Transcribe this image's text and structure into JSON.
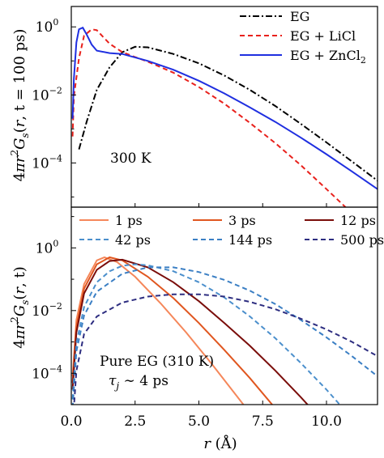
{
  "chart_data": [
    {
      "type": "line",
      "panel": "top",
      "ylabel": "4πr²G_s(r⃗, t = 100 ps)",
      "ylabel_parts": [
        "4",
        "π",
        "r",
        "2",
        "G",
        "s",
        "(",
        "r",
        ", t = 100 ps)"
      ],
      "xlim": [
        0,
        12
      ],
      "ylim_log10": [
        -5.3,
        0.6
      ],
      "ytick_labels": [
        {
          "value": 0,
          "mant": "10",
          "exp": "0"
        },
        {
          "value": -2,
          "mant": "10",
          "exp": "−2"
        },
        {
          "value": -4,
          "mant": "10",
          "exp": "−4"
        }
      ],
      "annotation": "300 K",
      "legend_position": "top-right",
      "series": [
        {
          "name": "EG",
          "name_parts": [
            "EG",
            "",
            ""
          ],
          "color": "#000000",
          "dash": "8,3,2,3",
          "x": [
            0.3,
            0.6,
            1.0,
            1.5,
            2.0,
            2.5,
            3.0,
            4.0,
            5.0,
            6.0,
            7.0,
            8.0,
            9.0,
            10.0,
            11.0,
            12.0
          ],
          "y": [
            0.00025,
            0.0016,
            0.014,
            0.065,
            0.18,
            0.26,
            0.25,
            0.16,
            0.085,
            0.037,
            0.014,
            0.0047,
            0.0014,
            0.0004,
            0.00011,
            3e-05
          ]
        },
        {
          "name": "EG + LiCl",
          "name_parts": [
            "EG + LiCl",
            "",
            ""
          ],
          "color": "#e8211c",
          "dash": "6,4",
          "x": [
            0.05,
            0.1,
            0.3,
            0.5,
            0.8,
            1.0,
            1.2,
            1.5,
            2.0,
            2.5,
            3.0,
            4.0,
            5.0,
            6.0,
            7.0,
            8.0,
            9.0,
            10.0,
            11.0,
            12.0
          ],
          "y": [
            0.0006,
            0.009,
            0.12,
            0.55,
            0.85,
            0.8,
            0.55,
            0.32,
            0.18,
            0.13,
            0.095,
            0.045,
            0.017,
            0.0055,
            0.0015,
            0.00038,
            8.5e-05,
            1.7e-05,
            3.3e-06,
            6e-07
          ]
        },
        {
          "name": "EG + ZnCl₂",
          "name_parts": [
            "EG + ZnCl",
            "2",
            ""
          ],
          "color": "#1f2fe0",
          "dash": "",
          "x": [
            0.05,
            0.1,
            0.2,
            0.3,
            0.45,
            0.6,
            0.8,
            1.0,
            1.5,
            2.0,
            3.0,
            4.0,
            5.0,
            6.0,
            7.0,
            8.0,
            9.0,
            10.0,
            11.0,
            12.0
          ],
          "y": [
            0.002,
            0.03,
            0.35,
            0.85,
            0.95,
            0.6,
            0.3,
            0.2,
            0.17,
            0.16,
            0.1,
            0.055,
            0.026,
            0.011,
            0.0043,
            0.0016,
            0.00055,
            0.00018,
            5.6e-05,
            1.7e-05
          ]
        }
      ]
    },
    {
      "type": "line",
      "panel": "bottom",
      "ylabel": "4πr²G_s(r⃗, t)",
      "ylabel_parts": [
        "4",
        "π",
        "r",
        "2",
        "G",
        "s",
        "(",
        "r",
        ", t)"
      ],
      "xlabel": "r (Å)",
      "xlabel_parts": [
        "r",
        " (Å)"
      ],
      "xlim": [
        0,
        12
      ],
      "ylim_log10": [
        -5.0,
        1.3
      ],
      "xtick_labels": [
        "0.0",
        "2.5",
        "5.0",
        "7.5",
        "10.0"
      ],
      "xtick_values": [
        0,
        2.5,
        5,
        7.5,
        10
      ],
      "ytick_labels": [
        {
          "value": 0,
          "mant": "10",
          "exp": "0"
        },
        {
          "value": -2,
          "mant": "10",
          "exp": "−2"
        },
        {
          "value": -4,
          "mant": "10",
          "exp": "−4"
        }
      ],
      "annotation": "Pure EG (310 K)",
      "annotation2_parts": [
        "τ",
        "j",
        " ∼ 4 ps"
      ],
      "annotation2": "τj ∼ 4 ps",
      "legend_position": "top (3 columns)",
      "series": [
        {
          "name": "1 ps",
          "color": "#f5875a",
          "dash": "",
          "x": [
            0.05,
            0.2,
            0.5,
            1.0,
            1.3,
            1.8,
            2.5,
            3.5,
            4.5,
            5.5,
            6.5,
            7.5,
            8.2
          ],
          "y": [
            8e-05,
            0.005,
            0.07,
            0.4,
            0.5,
            0.35,
            0.12,
            0.017,
            0.002,
            0.0002,
            1.8e-05,
            1.6e-06,
            2.5e-07
          ]
        },
        {
          "name": "3 ps",
          "color": "#e0561f",
          "dash": "",
          "x": [
            0.05,
            0.2,
            0.5,
            1.0,
            1.5,
            2.0,
            3.0,
            4.0,
            5.0,
            6.0,
            7.0,
            8.0,
            9.0
          ],
          "y": [
            5e-05,
            0.003,
            0.05,
            0.3,
            0.5,
            0.4,
            0.12,
            0.025,
            0.004,
            0.00055,
            7e-05,
            7.5e-06,
            8e-07
          ]
        },
        {
          "name": "12 ps",
          "color": "#7a0d0a",
          "dash": "",
          "x": [
            0.05,
            0.2,
            0.5,
            1.0,
            1.5,
            2.0,
            3.0,
            4.0,
            5.0,
            6.0,
            7.0,
            8.0,
            9.0,
            10.0,
            10.6
          ],
          "y": [
            3e-05,
            0.002,
            0.035,
            0.2,
            0.38,
            0.42,
            0.24,
            0.08,
            0.02,
            0.004,
            0.00075,
            0.00012,
            1.7e-05,
            2.2e-06,
            6e-07
          ]
        },
        {
          "name": "42 ps",
          "color": "#4b8fcc",
          "dash": "6,4",
          "x": [
            0.05,
            0.2,
            0.5,
            1.0,
            1.5,
            2.0,
            2.5,
            3.0,
            4.0,
            5.0,
            6.0,
            7.0,
            8.0,
            9.0,
            10.0,
            11.0,
            12.0
          ],
          "y": [
            1.5e-05,
            0.0009,
            0.013,
            0.08,
            0.18,
            0.27,
            0.3,
            0.28,
            0.18,
            0.08,
            0.026,
            0.0065,
            0.0013,
            0.00021,
            3e-05,
            3.6e-06,
            4e-07
          ]
        },
        {
          "name": "144 ps",
          "color": "#3b7fc4",
          "dash": "6,4",
          "x": [
            0.05,
            0.2,
            0.5,
            1.0,
            2.0,
            3.0,
            4.0,
            5.0,
            6.0,
            7.0,
            8.0,
            9.0,
            10.0,
            11.0,
            12.0
          ],
          "y": [
            8e-06,
            0.0005,
            0.007,
            0.04,
            0.15,
            0.24,
            0.24,
            0.17,
            0.095,
            0.043,
            0.016,
            0.005,
            0.0014,
            0.00035,
            8e-05
          ]
        },
        {
          "name": "500 ps",
          "color": "#2d2d80",
          "dash": "6,4",
          "x": [
            0.05,
            0.2,
            0.5,
            1.0,
            2.0,
            3.0,
            4.0,
            5.0,
            6.0,
            7.0,
            8.0,
            9.0,
            10.0,
            11.0,
            12.0
          ],
          "y": [
            2e-06,
            0.00012,
            0.0018,
            0.0065,
            0.018,
            0.028,
            0.033,
            0.033,
            0.028,
            0.019,
            0.011,
            0.0055,
            0.0025,
            0.001,
            0.00035
          ]
        }
      ]
    }
  ]
}
